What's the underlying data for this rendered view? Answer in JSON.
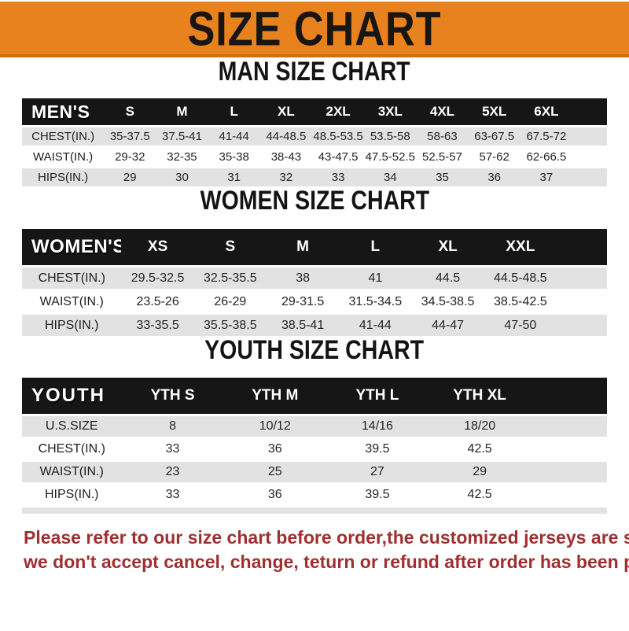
{
  "banner": {
    "title": "SIZE CHART",
    "background_color": "#e8821e",
    "border_color": "#cf6f10"
  },
  "sections": [
    {
      "heading": "MAN SIZE CHART",
      "table": {
        "corner": "MEN'S",
        "columns": [
          "S",
          "M",
          "L",
          "XL",
          "2XL",
          "3XL",
          "4XL",
          "5XL",
          "6XL"
        ],
        "rows": [
          {
            "label": "CHEST(IN.)",
            "values": [
              "35-37.5",
              "37.5-41",
              "41-44",
              "44-48.5",
              "48.5-53.5",
              "53.5-58",
              "58-63",
              "63-67.5",
              "67.5-72"
            ]
          },
          {
            "label": "WAIST(IN.)",
            "values": [
              "29-32",
              "32-35",
              "35-38",
              "38-43",
              "43-47.5",
              "47.5-52.5",
              "52.5-57",
              "57-62",
              "62-66.5"
            ]
          },
          {
            "label": "HIPS(IN.)",
            "values": [
              "29",
              "30",
              "31",
              "32",
              "33",
              "34",
              "35",
              "36",
              "37"
            ]
          }
        ]
      }
    },
    {
      "heading": "WOMEN SIZE CHART",
      "table": {
        "corner": "WOMEN'S",
        "columns": [
          "XS",
          "S",
          "M",
          "L",
          "XL",
          "XXL"
        ],
        "rows": [
          {
            "label": "CHEST(IN.)",
            "values": [
              "29.5-32.5",
              "32.5-35.5",
              "38",
              "41",
              "44.5",
              "44.5-48.5"
            ]
          },
          {
            "label": "WAIST(IN.)",
            "values": [
              "23.5-26",
              "26-29",
              "29-31.5",
              "31.5-34.5",
              "34.5-38.5",
              "38.5-42.5"
            ]
          },
          {
            "label": "HIPS(IN.)",
            "values": [
              "33-35.5",
              "35.5-38.5",
              "38.5-41",
              "41-44",
              "44-47",
              "47-50"
            ]
          }
        ]
      }
    },
    {
      "heading": "YOUTH SIZE CHART",
      "table": {
        "corner": "YOUTH",
        "columns": [
          "YTH S",
          "YTH M",
          "YTH L",
          "YTH XL"
        ],
        "rows": [
          {
            "label": "U.S.SIZE",
            "values": [
              "8",
              "10/12",
              "14/16",
              "18/20"
            ]
          },
          {
            "label": "CHEST(IN.)",
            "values": [
              "33",
              "36",
              "39.5",
              "42.5"
            ]
          },
          {
            "label": "WAIST(IN.)",
            "values": [
              "23",
              "25",
              "27",
              "29"
            ]
          },
          {
            "label": "HIPS(IN.)",
            "values": [
              "33",
              "36",
              "39.5",
              "42.5"
            ]
          }
        ]
      }
    }
  ],
  "footer": {
    "text_color": "#a02f2f",
    "lines": [
      "Please refer to our size chart before order,the customized jerseys are special products,",
      "we don't accept cancel, change, teturn or refund after order has been placed!"
    ]
  },
  "colors": {
    "header_bar": "#161616",
    "row_stripe": "#e2e2e2",
    "banner_orange": "#e8821e"
  }
}
